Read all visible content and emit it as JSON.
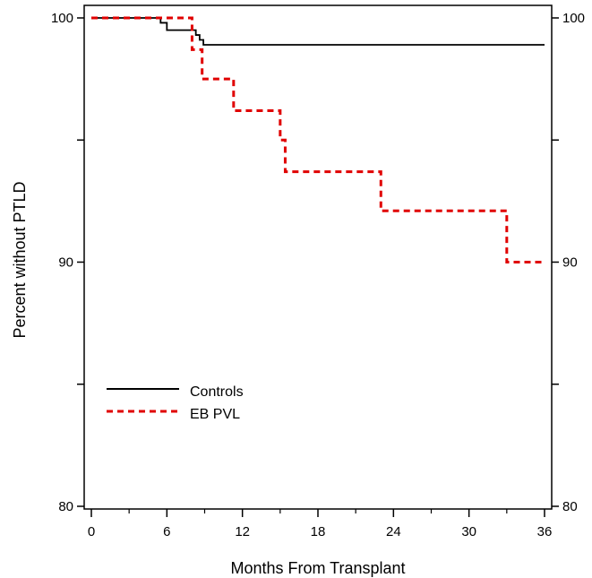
{
  "chart_data": {
    "type": "line",
    "title": "",
    "xlabel": "Months From Transplant",
    "ylabel": "Percent without PTLD",
    "xlim": [
      0,
      36
    ],
    "ylim": [
      80,
      100
    ],
    "x_ticks": [
      0,
      6,
      12,
      18,
      24,
      30,
      36
    ],
    "x_tick_labels": [
      "0",
      "6",
      "12",
      "18",
      "24",
      "30",
      "36"
    ],
    "y_ticks": [
      80,
      90,
      100
    ],
    "y_tick_labels": [
      "80",
      "90",
      "100"
    ],
    "y_minor_ticks": [
      85,
      95
    ],
    "right_axis_labels": true,
    "grid": false,
    "legend_position": "bottom-left",
    "step": true,
    "series": [
      {
        "name": "Controls",
        "color": "#000000",
        "style": "solid",
        "x": [
          0,
          5.5,
          6.0,
          8.3,
          8.6,
          8.9,
          36
        ],
        "y": [
          100,
          99.8,
          99.5,
          99.3,
          99.1,
          98.9,
          98.9
        ]
      },
      {
        "name": "EB PVL",
        "color": "#e00000",
        "style": "dashed",
        "x": [
          0,
          8.0,
          8.8,
          11.3,
          15.0,
          15.4,
          23.0,
          33.0,
          36
        ],
        "y": [
          100,
          98.7,
          97.5,
          96.2,
          95.0,
          93.7,
          92.1,
          90.0,
          90.0
        ]
      }
    ]
  }
}
